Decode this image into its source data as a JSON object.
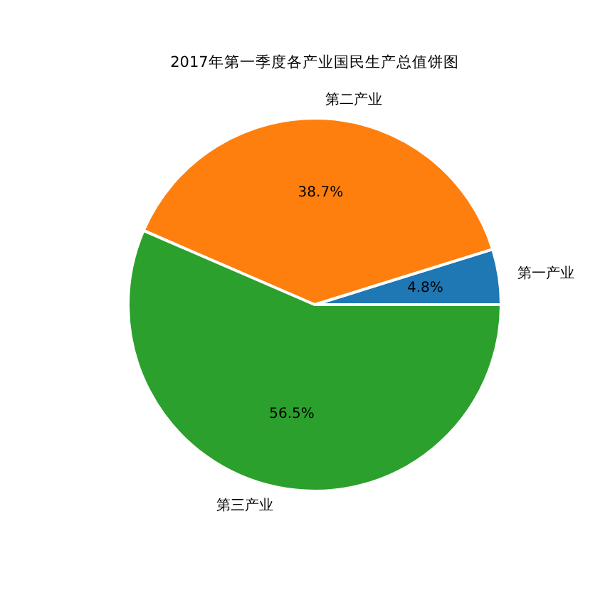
{
  "chart_data": {
    "type": "pie",
    "title": "2017年第一季度各产业国民生产总值饼图",
    "categories": [
      "第一产业",
      "第二产业",
      "第三产业"
    ],
    "values": [
      4.8,
      38.7,
      56.5
    ],
    "colors": [
      "#1f77b4",
      "#ff7f0e",
      "#2ca02c"
    ],
    "value_labels": [
      "4.8%",
      "38.7%",
      "56.5%"
    ]
  }
}
